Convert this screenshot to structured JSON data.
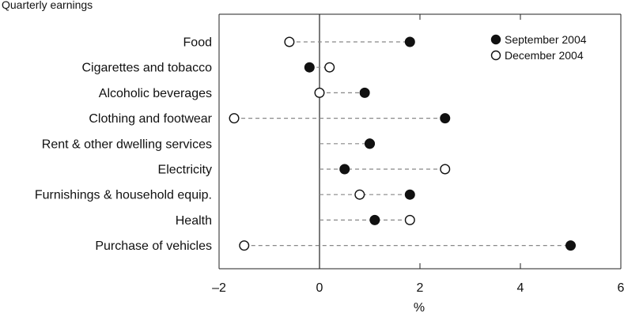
{
  "chart_data": {
    "type": "scatter",
    "title": "Quarterly earnings",
    "xlabel": "%",
    "ylabel": "",
    "xlim": [
      -2,
      6
    ],
    "xticks": [
      -2,
      0,
      2,
      4,
      6
    ],
    "x_tick_labels": [
      "–2",
      "0",
      "2",
      "4",
      "6"
    ],
    "grid": false,
    "legend_position": "top-right",
    "categories": [
      "Food",
      "Cigarettes and tobacco",
      "Alcoholic beverages",
      "Clothing and footwear",
      "Rent & other dwelling services",
      "Electricity",
      "Furnishings & household equip.",
      "Health",
      "Purchase of vehicles"
    ],
    "series": [
      {
        "name": "September 2004",
        "marker": "filled-circle",
        "values": [
          1.8,
          -0.2,
          0.9,
          2.5,
          1.0,
          0.5,
          1.8,
          1.1,
          5.0
        ]
      },
      {
        "name": "December 2004",
        "marker": "open-circle",
        "values": [
          -0.6,
          0.2,
          0.0,
          -1.7,
          1.0,
          2.5,
          0.8,
          1.8,
          -1.5
        ]
      }
    ],
    "colors": {
      "marker": "#111111",
      "connector": "#888888",
      "axis": "#222222"
    }
  }
}
